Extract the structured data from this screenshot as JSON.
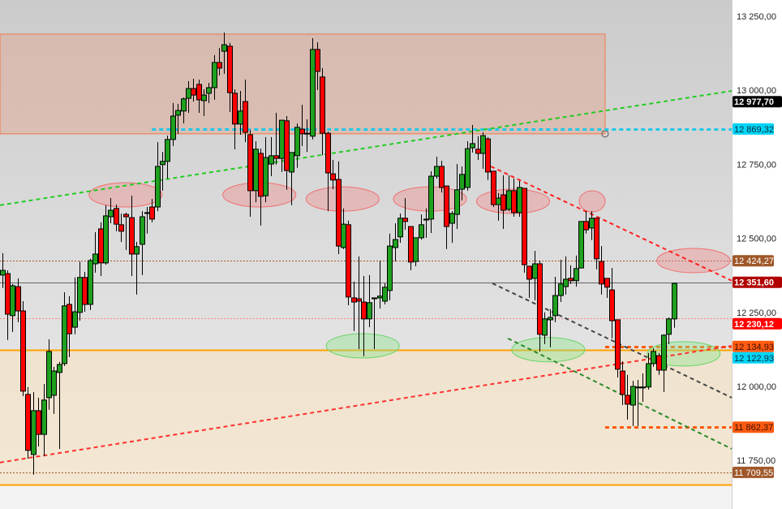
{
  "chart_data": {
    "type": "candlestick",
    "title": "",
    "xlabel": "",
    "ylabel": "",
    "ylim": [
      11586,
      13305
    ],
    "xlim": [
      0.6,
      142.2
    ],
    "grid": false,
    "colors": {
      "up": "#1fa01f",
      "down": "#ff0000",
      "wick": "#000000"
    },
    "y_ticks": [
      {
        "value": 13250,
        "label": "13 250,00"
      },
      {
        "value": 13000,
        "label": "13 000,00"
      },
      {
        "value": 12750,
        "label": "12 750,00"
      },
      {
        "value": 12500,
        "label": "12 500,00"
      },
      {
        "value": 12250,
        "label": "12 250,00"
      },
      {
        "value": 12000,
        "label": "12 000,00"
      },
      {
        "value": 11750,
        "label": "11 750,00"
      }
    ],
    "candles": [
      [
        12376,
        12450,
        12332,
        12392
      ],
      [
        12381,
        12392,
        12157,
        12244
      ],
      [
        12239,
        12346,
        12184,
        12340
      ],
      [
        12337,
        12365,
        12217,
        12255
      ],
      [
        12255,
        12288,
        11967,
        11984
      ],
      [
        11973,
        11998,
        11756,
        11784
      ],
      [
        11770,
        11981,
        11702,
        11918
      ],
      [
        11918,
        11962,
        11797,
        11838
      ],
      [
        11838,
        12008,
        11765,
        11954
      ],
      [
        11962,
        12159,
        11921,
        12118
      ],
      [
        11970,
        12066,
        11907,
        12052
      ],
      [
        12047,
        12083,
        11789,
        12074
      ],
      [
        12077,
        12318,
        12069,
        12272
      ],
      [
        12277,
        12305,
        12099,
        12178
      ],
      [
        12200,
        12368,
        12176,
        12252
      ],
      [
        12250,
        12422,
        12222,
        12368
      ],
      [
        12368,
        12387,
        12252,
        12277
      ],
      [
        12277,
        12431,
        12258,
        12425
      ],
      [
        12414,
        12521,
        12384,
        12447
      ],
      [
        12532,
        12554,
        12373,
        12417
      ],
      [
        12417,
        12612,
        12411,
        12576
      ],
      [
        12573,
        12636,
        12551,
        12595
      ],
      [
        12601,
        12614,
        12524,
        12548
      ],
      [
        12546,
        12584,
        12488,
        12524
      ],
      [
        12581,
        12587,
        12461,
        12573
      ],
      [
        12570,
        12644,
        12373,
        12447
      ],
      [
        12447,
        12488,
        12310,
        12472
      ],
      [
        12480,
        12592,
        12376,
        12573
      ],
      [
        12587,
        12606,
        12516,
        12584
      ],
      [
        12606,
        12633,
        12554,
        12565
      ],
      [
        12606,
        12825,
        12592,
        12743
      ],
      [
        12749,
        12792,
        12661,
        12760
      ],
      [
        12760,
        12847,
        12702,
        12834
      ],
      [
        12834,
        12957,
        12812,
        12913
      ],
      [
        12916,
        12954,
        12853,
        12932
      ],
      [
        12930,
        12976,
        12888,
        12971
      ],
      [
        12973,
        13031,
        12924,
        13006
      ],
      [
        13006,
        13039,
        12962,
        12984
      ],
      [
        13020,
        13036,
        12924,
        12968
      ],
      [
        12965,
        13003,
        12913,
        12984
      ],
      [
        12990,
        13025,
        12957,
        13009
      ],
      [
        13009,
        13119,
        12968,
        13094
      ],
      [
        13094,
        13143,
        13050,
        13075
      ],
      [
        13132,
        13195,
        13056,
        13154
      ],
      [
        13149,
        13160,
        12927,
        12992
      ],
      [
        12990,
        13003,
        12801,
        12886
      ],
      [
        12886,
        12998,
        12850,
        12930
      ],
      [
        12962,
        13036,
        12825,
        12858
      ],
      [
        12850,
        12866,
        12573,
        12661
      ],
      [
        12661,
        12828,
        12622,
        12801
      ],
      [
        12787,
        12803,
        12543,
        12642
      ],
      [
        12644,
        12842,
        12622,
        12773
      ],
      [
        12751,
        12842,
        12710,
        12779
      ],
      [
        12779,
        12924,
        12749,
        12770
      ],
      [
        12770,
        12899,
        12724,
        12899
      ],
      [
        12897,
        12913,
        12664,
        12729
      ],
      [
        12724,
        12790,
        12612,
        12790
      ],
      [
        12779,
        12888,
        12738,
        12875
      ],
      [
        12869,
        12951,
        12812,
        12853
      ],
      [
        12855,
        12902,
        12792,
        12853
      ],
      [
        12845,
        13176,
        12834,
        13138
      ],
      [
        13138,
        13162,
        13001,
        13064
      ],
      [
        13045,
        13075,
        12781,
        12855
      ],
      [
        12855,
        12860,
        12592,
        12721
      ],
      [
        12718,
        12765,
        12666,
        12697
      ],
      [
        12699,
        12760,
        12447,
        12474
      ],
      [
        12469,
        12601,
        12464,
        12548
      ],
      [
        12546,
        12560,
        12274,
        12302
      ],
      [
        12299,
        12354,
        12187,
        12285
      ],
      [
        12296,
        12439,
        12126,
        12288
      ],
      [
        12285,
        12373,
        12102,
        12228
      ],
      [
        12228,
        12376,
        12200,
        12283
      ],
      [
        12296,
        12299,
        12126,
        12299
      ],
      [
        12299,
        12425,
        12263,
        12305
      ],
      [
        12288,
        12348,
        12277,
        12335
      ],
      [
        12324,
        12516,
        12291,
        12474
      ],
      [
        12469,
        12551,
        12422,
        12496
      ],
      [
        12505,
        12584,
        12485,
        12568
      ],
      [
        12568,
        12636,
        12529,
        12557
      ],
      [
        12540,
        12540,
        12392,
        12420
      ],
      [
        12422,
        12502,
        12406,
        12502
      ],
      [
        12502,
        12581,
        12496,
        12546
      ],
      [
        12562,
        12601,
        12502,
        12565
      ],
      [
        12565,
        12727,
        12518,
        12710
      ],
      [
        12710,
        12776,
        12702,
        12743
      ],
      [
        12743,
        12762,
        12655,
        12672
      ],
      [
        12677,
        12677,
        12464,
        12540
      ],
      [
        12551,
        12592,
        12485,
        12584
      ],
      [
        12581,
        12751,
        12532,
        12664
      ],
      [
        12666,
        12743,
        12628,
        12716
      ],
      [
        12672,
        12828,
        12661,
        12803
      ],
      [
        12806,
        12883,
        12790,
        12820
      ],
      [
        12801,
        12845,
        12765,
        12787
      ],
      [
        12787,
        12858,
        12735,
        12847
      ],
      [
        12836,
        12842,
        12697,
        12724
      ],
      [
        12727,
        12727,
        12606,
        12614
      ],
      [
        12614,
        12653,
        12560,
        12636
      ],
      [
        12647,
        12713,
        12532,
        12595
      ],
      [
        12598,
        12713,
        12592,
        12661
      ],
      [
        12661,
        12702,
        12573,
        12587
      ],
      [
        12587,
        12694,
        12573,
        12672
      ],
      [
        12669,
        12669,
        12384,
        12411
      ],
      [
        12406,
        12406,
        12299,
        12362
      ],
      [
        12365,
        12458,
        12291,
        12414
      ],
      [
        12414,
        12425,
        12118,
        12176
      ],
      [
        12173,
        12250,
        12143,
        12228
      ],
      [
        12225,
        12261,
        12132,
        12233
      ],
      [
        12239,
        12370,
        12217,
        12307
      ],
      [
        12307,
        12428,
        12285,
        12346
      ],
      [
        12337,
        12439,
        12310,
        12362
      ],
      [
        12365,
        12409,
        12346,
        12357
      ],
      [
        12357,
        12442,
        12337,
        12398
      ],
      [
        12400,
        12557,
        12400,
        12557
      ],
      [
        12557,
        12592,
        12516,
        12529
      ],
      [
        12535,
        12592,
        12494,
        12568
      ],
      [
        12568,
        12568,
        12395,
        12431
      ],
      [
        12422,
        12474,
        12310,
        12346
      ],
      [
        12365,
        12365,
        12299,
        12335
      ],
      [
        12326,
        12400,
        12162,
        12222
      ],
      [
        12225,
        12225,
        12030,
        12058
      ],
      [
        12052,
        12085,
        11937,
        11973
      ],
      [
        11970,
        12039,
        11888,
        11940
      ],
      [
        11937,
        12019,
        11866,
        12000
      ],
      [
        11995,
        12022,
        11866,
        11998
      ],
      [
        11995,
        12044,
        11948,
        11998
      ],
      [
        11998,
        12113,
        11989,
        12077
      ],
      [
        12077,
        12129,
        12066,
        12118
      ],
      [
        12104,
        12113,
        12039,
        12055
      ],
      [
        12055,
        12176,
        11981,
        12173
      ],
      [
        12176,
        12233,
        12143,
        12228
      ],
      [
        12228,
        12351,
        12198,
        12348
      ]
    ],
    "price_labels": [
      {
        "value": 12977.7,
        "label": "12 977,70",
        "bg": "#000000",
        "fg": "#ffffff",
        "bold": true
      },
      {
        "value": 12869.32,
        "label": "12 869,32",
        "bg": "#00d4f4",
        "fg": "#0a2a40",
        "bold": false
      },
      {
        "value": 12424.27,
        "label": "12 424,27",
        "bg": "#a0582a",
        "fg": "#ffffff",
        "bold": false
      },
      {
        "value": 12351.6,
        "label": "12 351,60",
        "bg": "#b00000",
        "fg": "#ffffff",
        "bold": true
      },
      {
        "value": 12230.12,
        "label": "12 230,12",
        "bg": "#ff0000",
        "fg": "#ffffff",
        "bold": true
      },
      {
        "value": 12122.93,
        "label": "12 122,93",
        "bg": "#00d4f4",
        "fg": "#0a2a40",
        "bold": false
      },
      {
        "value": 12134.93,
        "label": "12 134,93",
        "bg": "#ff5a10",
        "fg": "#3a1000",
        "bold": false
      },
      {
        "value": 11862.37,
        "label": "11 862,37",
        "bg": "#ff5a10",
        "fg": "#3a1000",
        "bold": false
      },
      {
        "value": 11709.55,
        "label": "11 709,55",
        "bg": "#a0582a",
        "fg": "#ffffff",
        "bold": false
      }
    ],
    "horizontal_lines": [
      {
        "value": 12869.32,
        "from": 30.0,
        "color": "#20c8e8",
        "style": "dotted-thick"
      },
      {
        "value": 12424.27,
        "from": 0.6,
        "color": "#a0582a",
        "style": "dotted"
      },
      {
        "value": 12351.6,
        "from": 0.6,
        "color": "#666666",
        "style": "solid"
      },
      {
        "value": 12230.12,
        "from": 0.6,
        "color": "#ff8080",
        "style": "dotted"
      },
      {
        "value": 12122.93,
        "from": 0.6,
        "color": "#ffa000",
        "style": "solid-thick"
      },
      {
        "value": 12134.93,
        "from": 117.7,
        "color": "#ff5a10",
        "style": "dotted-thick"
      },
      {
        "value": 11862.37,
        "from": 117.7,
        "color": "#ff5a10",
        "style": "dotted-thick"
      },
      {
        "value": 11709.55,
        "from": 0.6,
        "color": "#a0582a",
        "style": "dotted"
      },
      {
        "value": 11669,
        "from": 0.6,
        "color": "#ffa000",
        "style": "solid-thick"
      }
    ],
    "zones": [
      {
        "from_index": 0.6,
        "to_index": 117.7,
        "top": 13190,
        "bottom": 12853,
        "fill": "rgba(232,150,120,0.35)",
        "stroke": "#f07a4a"
      },
      {
        "from_index": 0.6,
        "to_index": 142.2,
        "top": 12122.93,
        "bottom": 11669,
        "fill": "rgba(250,226,190,0.55)",
        "stroke": "none"
      }
    ],
    "trend_lines": [
      {
        "from": [
          0.6,
          12612
        ],
        "to": [
          142.2,
          12998
        ],
        "color": "#22cc22"
      },
      {
        "from": [
          0.6,
          11743
        ],
        "to": [
          142.2,
          12137
        ],
        "color": "#ff3030"
      },
      {
        "from": [
          95.6,
          12743
        ],
        "to": [
          142.2,
          12357
        ],
        "color": "#ff2020"
      },
      {
        "from": [
          95.9,
          12348
        ],
        "to": [
          142.2,
          11962
        ],
        "color": "#444444"
      },
      {
        "from": [
          98.9,
          12162
        ],
        "to": [
          142.2,
          11789
        ],
        "color": "#2a8a2a"
      }
    ],
    "markers": [
      {
        "index": 24.9,
        "price": 12647,
        "kind": "resistance"
      },
      {
        "index": 50.8,
        "price": 12647,
        "kind": "resistance"
      },
      {
        "index": 66.9,
        "price": 12633,
        "kind": "resistance"
      },
      {
        "index": 83.8,
        "price": 12633,
        "kind": "resistance"
      },
      {
        "index": 99.9,
        "price": 12625,
        "kind": "resistance"
      },
      {
        "index": 115.2,
        "price": 12625,
        "kind": "resistance-small"
      },
      {
        "index": 134.8,
        "price": 12425,
        "kind": "resistance"
      },
      {
        "index": 70.8,
        "price": 12137,
        "kind": "support"
      },
      {
        "index": 106.7,
        "price": 12124,
        "kind": "support"
      },
      {
        "index": 132.9,
        "price": 12110,
        "kind": "support"
      }
    ]
  }
}
